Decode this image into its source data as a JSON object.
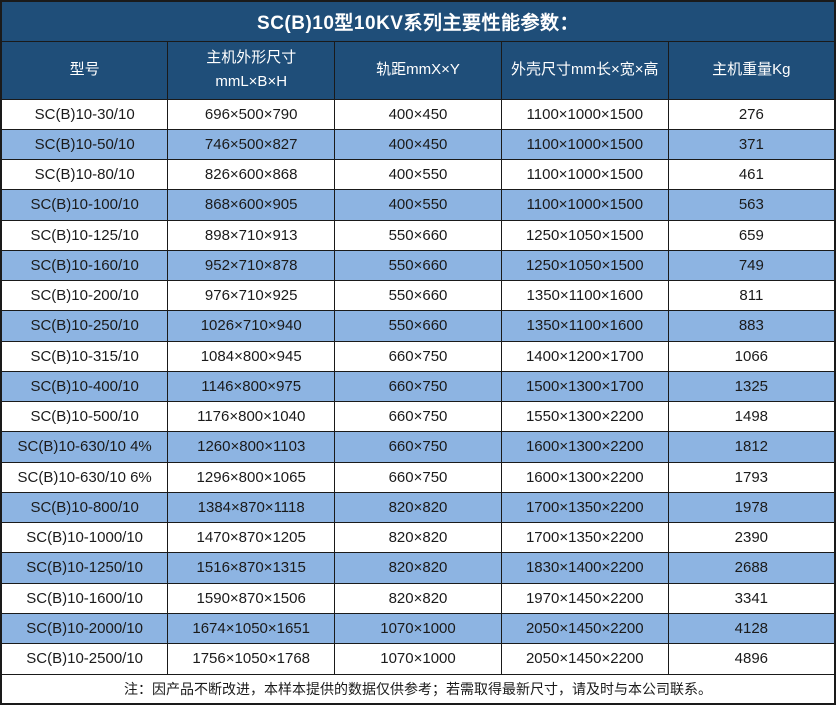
{
  "title": "SC(B)10型10KV系列主要性能参数：",
  "note": "注：因产品不断改进，本样本提供的数据仅供参考；若需取得最新尺寸，请及时与本公司联系。",
  "colors": {
    "header_bg": "#1f4e79",
    "header_text": "#ffffff",
    "row_alt_bg": "#8db4e2",
    "row_bg": "#ffffff",
    "border": "#1a1a1a",
    "body_text": "#1a1a1a"
  },
  "table": {
    "columns": [
      {
        "lines": [
          "型号"
        ]
      },
      {
        "lines": [
          "主机外形尺寸",
          "mmL×B×H"
        ]
      },
      {
        "lines": [
          "轨距mmX×Y"
        ]
      },
      {
        "lines": [
          "外壳尺寸mm长×宽×高"
        ]
      },
      {
        "lines": [
          "主机重量Kg"
        ]
      }
    ],
    "rows": [
      [
        "SC(B)10-30/10",
        "696×500×790",
        "400×450",
        "1100×1000×1500",
        "276"
      ],
      [
        "SC(B)10-50/10",
        "746×500×827",
        "400×450",
        "1100×1000×1500",
        "371"
      ],
      [
        "SC(B)10-80/10",
        "826×600×868",
        "400×550",
        "1100×1000×1500",
        "461"
      ],
      [
        "SC(B)10-100/10",
        "868×600×905",
        "400×550",
        "1100×1000×1500",
        "563"
      ],
      [
        "SC(B)10-125/10",
        "898×710×913",
        "550×660",
        "1250×1050×1500",
        "659"
      ],
      [
        "SC(B)10-160/10",
        "952×710×878",
        "550×660",
        "1250×1050×1500",
        "749"
      ],
      [
        "SC(B)10-200/10",
        "976×710×925",
        "550×660",
        "1350×1100×1600",
        "811"
      ],
      [
        "SC(B)10-250/10",
        "1026×710×940",
        "550×660",
        "1350×1100×1600",
        "883"
      ],
      [
        "SC(B)10-315/10",
        "1084×800×945",
        "660×750",
        "1400×1200×1700",
        "1066"
      ],
      [
        "SC(B)10-400/10",
        "1146×800×975",
        "660×750",
        "1500×1300×1700",
        "1325"
      ],
      [
        "SC(B)10-500/10",
        "1176×800×1040",
        "660×750",
        "1550×1300×2200",
        "1498"
      ],
      [
        "SC(B)10-630/10 4%",
        "1260×800×1103",
        "660×750",
        "1600×1300×2200",
        "1812"
      ],
      [
        "SC(B)10-630/10 6%",
        "1296×800×1065",
        "660×750",
        "1600×1300×2200",
        "1793"
      ],
      [
        "SC(B)10-800/10",
        "1384×870×1118",
        "820×820",
        "1700×1350×2200",
        "1978"
      ],
      [
        "SC(B)10-1000/10",
        "1470×870×1205",
        "820×820",
        "1700×1350×2200",
        "2390"
      ],
      [
        "SC(B)10-1250/10",
        "1516×870×1315",
        "820×820",
        "1830×1400×2200",
        "2688"
      ],
      [
        "SC(B)10-1600/10",
        "1590×870×1506",
        "820×820",
        "1970×1450×2200",
        "3341"
      ],
      [
        "SC(B)10-2000/10",
        "1674×1050×1651",
        "1070×1000",
        "2050×1450×2200",
        "4128"
      ],
      [
        "SC(B)10-2500/10",
        "1756×1050×1768",
        "1070×1000",
        "2050×1450×2200",
        "4896"
      ]
    ]
  }
}
